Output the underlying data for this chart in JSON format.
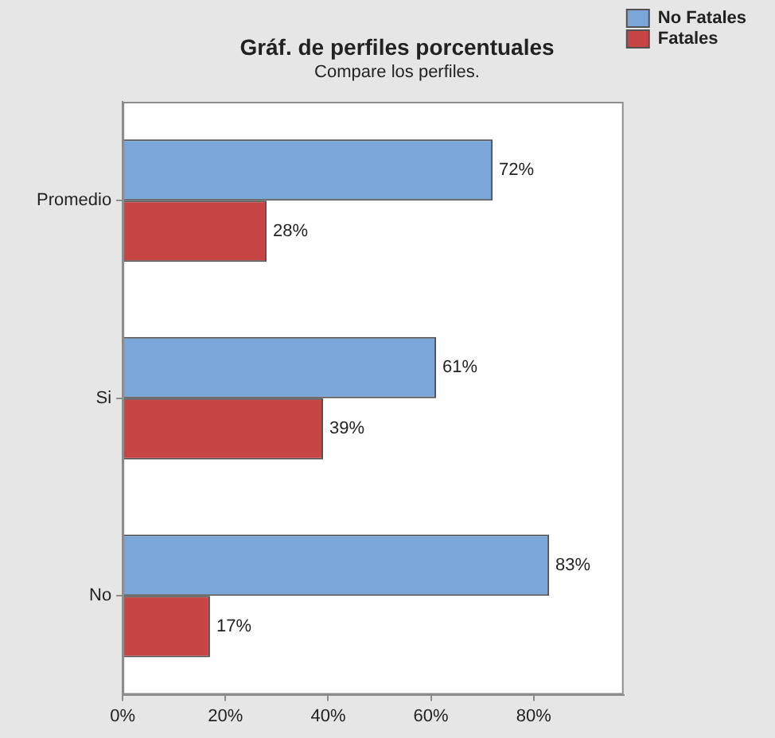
{
  "chart_data": {
    "type": "bar",
    "orientation": "horizontal",
    "title": "Gráf. de perfiles porcentuales",
    "subtitle": "Compare los perfiles.",
    "categories": [
      "Promedio",
      "Si",
      "No"
    ],
    "series": [
      {
        "name": "No Fatales",
        "color": "#7ba6da",
        "values": [
          72,
          61,
          83
        ],
        "value_labels": [
          "72%",
          "61%",
          "83%"
        ]
      },
      {
        "name": "Fatales",
        "color": "#c84545",
        "values": [
          28,
          39,
          17
        ],
        "value_labels": [
          "28%",
          "39%",
          "17%"
        ]
      }
    ],
    "xlim": [
      0,
      97.5
    ],
    "xticks": [
      {
        "value": 0,
        "label": "0%"
      },
      {
        "value": 20,
        "label": "20%"
      },
      {
        "value": 40,
        "label": "40%"
      },
      {
        "value": 60,
        "label": "60%"
      },
      {
        "value": 80,
        "label": "80%"
      }
    ],
    "grid": false,
    "legend": "top right"
  }
}
